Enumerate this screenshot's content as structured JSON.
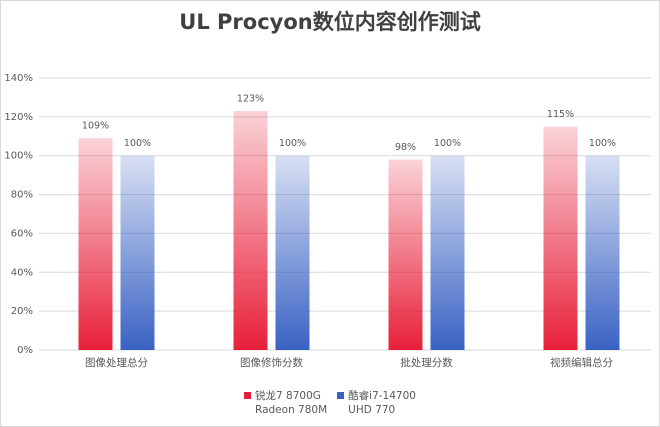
{
  "chart_data": {
    "type": "bar",
    "title": "UL Procyon数位内容创作测试",
    "categories": [
      "图像处理总分",
      "图像修饰分数",
      "批处理分数",
      "视频编辑总分"
    ],
    "series": [
      {
        "name": "锐龙7 8700G\nRadeon 780M",
        "color": "#e8203a",
        "values": [
          109,
          123,
          98,
          115
        ],
        "value_labels": [
          "109%",
          "123%",
          "98%",
          "115%"
        ]
      },
      {
        "name": "酷睿i7-14700\nUHD 770",
        "color": "#3a62c4",
        "values": [
          100,
          100,
          100,
          100
        ],
        "value_labels": [
          "100%",
          "100%",
          "100%",
          "100%"
        ]
      }
    ],
    "ylim": [
      0,
      140
    ],
    "yticks": [
      {
        "value": 0,
        "label": "0%"
      },
      {
        "value": 20,
        "label": "20%"
      },
      {
        "value": 40,
        "label": "40%"
      },
      {
        "value": 60,
        "label": "60%"
      },
      {
        "value": 80,
        "label": "80%"
      },
      {
        "value": 100,
        "label": "100%"
      },
      {
        "value": 120,
        "label": "120%"
      },
      {
        "value": 140,
        "label": "140%"
      }
    ],
    "grid": true,
    "legend": "bottom"
  }
}
